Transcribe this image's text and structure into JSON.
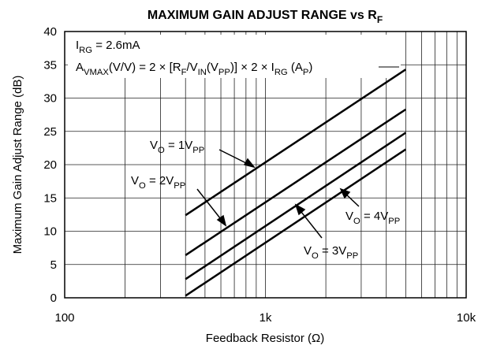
{
  "chart_data": {
    "type": "line",
    "title": [
      "MAXIMUM GAIN ADJUST RANGE vs R",
      "F"
    ],
    "xlabel": "Feedback Resistor (Ω)",
    "ylabel": "Maximum Gain Adjust Range (dB)",
    "x": [
      400,
      5000
    ],
    "series": [
      {
        "name": [
          "V",
          "O",
          " = 1V",
          "PP"
        ],
        "color": "#000000",
        "values": [
          12.4,
          34.3
        ]
      },
      {
        "name": [
          "V",
          "O",
          " = 2V",
          "PP"
        ],
        "color": "#000000",
        "values": [
          6.4,
          28.3
        ]
      },
      {
        "name": [
          "V",
          "O",
          " = 3V",
          "PP"
        ],
        "color": "#000000",
        "values": [
          2.8,
          24.8
        ]
      },
      {
        "name": [
          "V",
          "O",
          " = 4V",
          "PP"
        ],
        "color": "#000000",
        "values": [
          0.3,
          22.3
        ]
      }
    ],
    "annotations": [
      [
        "I",
        "RG",
        " = 2.6mA"
      ],
      [
        "A",
        "VMAX",
        "(V/V) = 2 × [R",
        "F",
        "/V",
        "IN",
        "(V",
        "PP",
        ")] × 2 × I",
        "RG",
        " (A",
        "P",
        ")"
      ]
    ],
    "xscale": "log",
    "xlim": [
      100,
      10000
    ],
    "xticks": [
      {
        "value": 100,
        "label": "100"
      },
      {
        "value": 1000,
        "label": "1k"
      },
      {
        "value": 10000,
        "label": "10k"
      }
    ],
    "ylim": [
      0,
      40
    ],
    "yticks": [
      0,
      5,
      10,
      15,
      20,
      25,
      30,
      35,
      40
    ],
    "grid": true,
    "minor_grid": true
  }
}
